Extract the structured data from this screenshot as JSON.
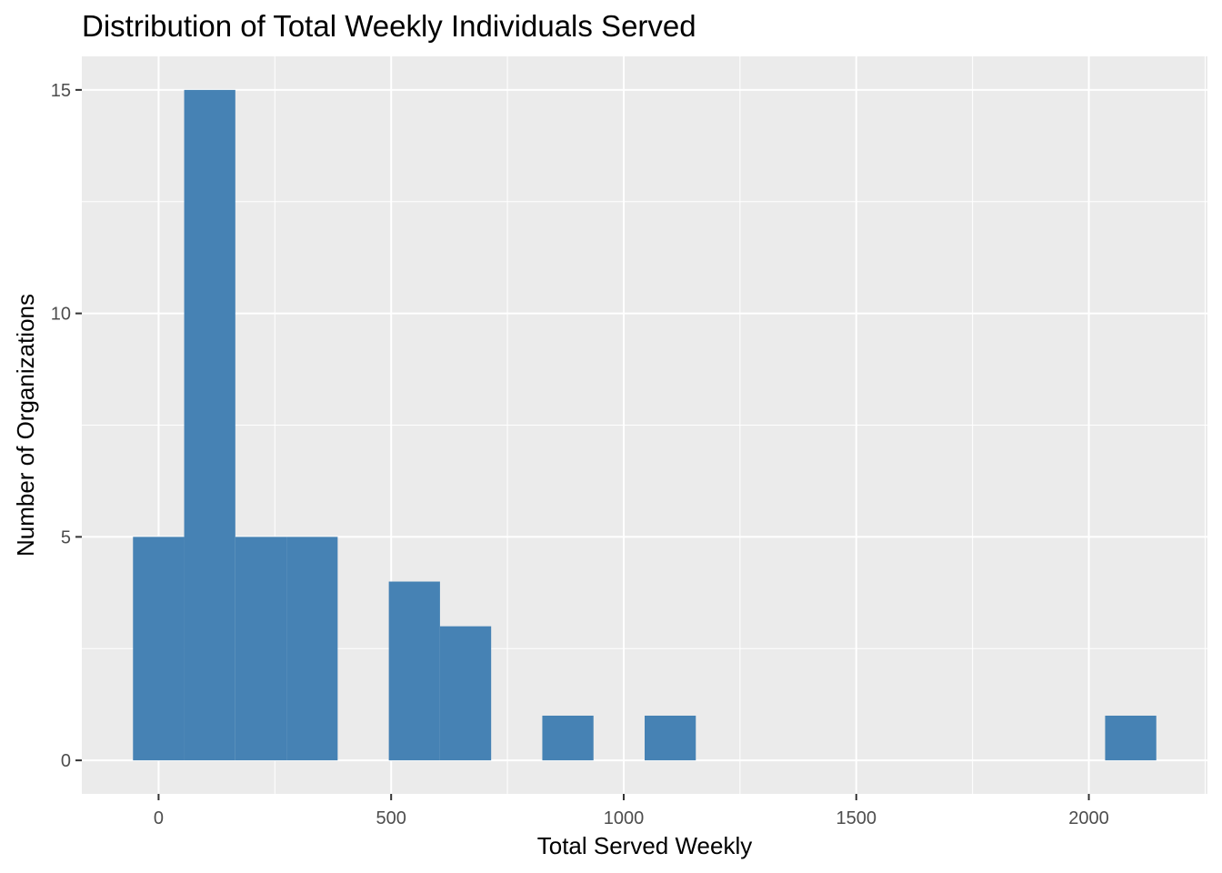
{
  "chart_data": {
    "type": "bar",
    "subtype": "histogram",
    "title": "Distribution of Total Weekly Individuals Served",
    "xlabel": "Total Served Weekly",
    "ylabel": "Number of Organizations",
    "bin_width": 110,
    "bins": [
      {
        "x0": -55,
        "x1": 55,
        "count": 5
      },
      {
        "x0": 55,
        "x1": 165,
        "count": 15
      },
      {
        "x0": 165,
        "x1": 275,
        "count": 5
      },
      {
        "x0": 275,
        "x1": 385,
        "count": 5
      },
      {
        "x0": 495,
        "x1": 605,
        "count": 4
      },
      {
        "x0": 605,
        "x1": 715,
        "count": 3
      },
      {
        "x0": 825,
        "x1": 935,
        "count": 1
      },
      {
        "x0": 1045,
        "x1": 1155,
        "count": 1
      },
      {
        "x0": 2035,
        "x1": 2145,
        "count": 1
      }
    ],
    "xlim": [
      -165,
      2255
    ],
    "ylim": [
      -0.75,
      15.75
    ],
    "x_ticks": [
      0,
      500,
      1000,
      1500,
      2000
    ],
    "x_tick_labels": [
      "0",
      "500",
      "1000",
      "1500",
      "2000"
    ],
    "y_ticks": [
      0,
      5,
      10,
      15
    ],
    "y_tick_labels": [
      "0",
      "5",
      "10",
      "15"
    ],
    "grid": true,
    "legend": "none",
    "colors": {
      "bar": "#4682b4",
      "panel": "#ebebeb",
      "grid": "#ffffff",
      "tick": "#333333"
    }
  }
}
